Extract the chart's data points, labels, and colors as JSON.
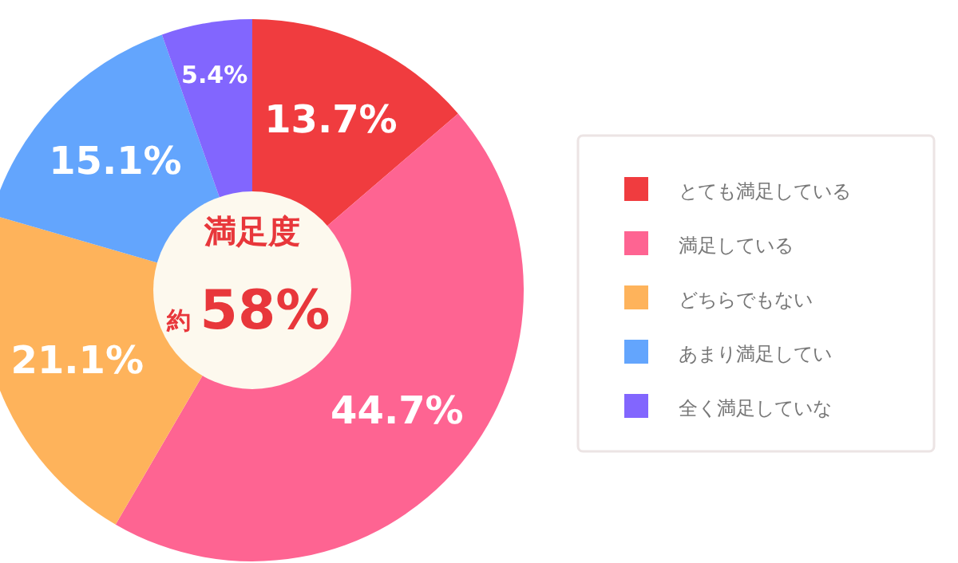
{
  "chart_data": {
    "type": "donut",
    "categories": [
      "とても満足している",
      "満足している",
      "どちらでもない",
      "あまり満足してい",
      "全く満足していな"
    ],
    "values": [
      13.7,
      44.7,
      21.1,
      15.1,
      5.4
    ],
    "value_labels": [
      "13.7%",
      "44.7%",
      "21.1%",
      "15.1%",
      "5.4%"
    ],
    "colors": [
      "#f03c3f",
      "#fe6492",
      "#feb35b",
      "#63a5fd",
      "#8266fe"
    ],
    "annotations": [
      "満足度",
      "約",
      "58%"
    ],
    "legend": "right"
  }
}
